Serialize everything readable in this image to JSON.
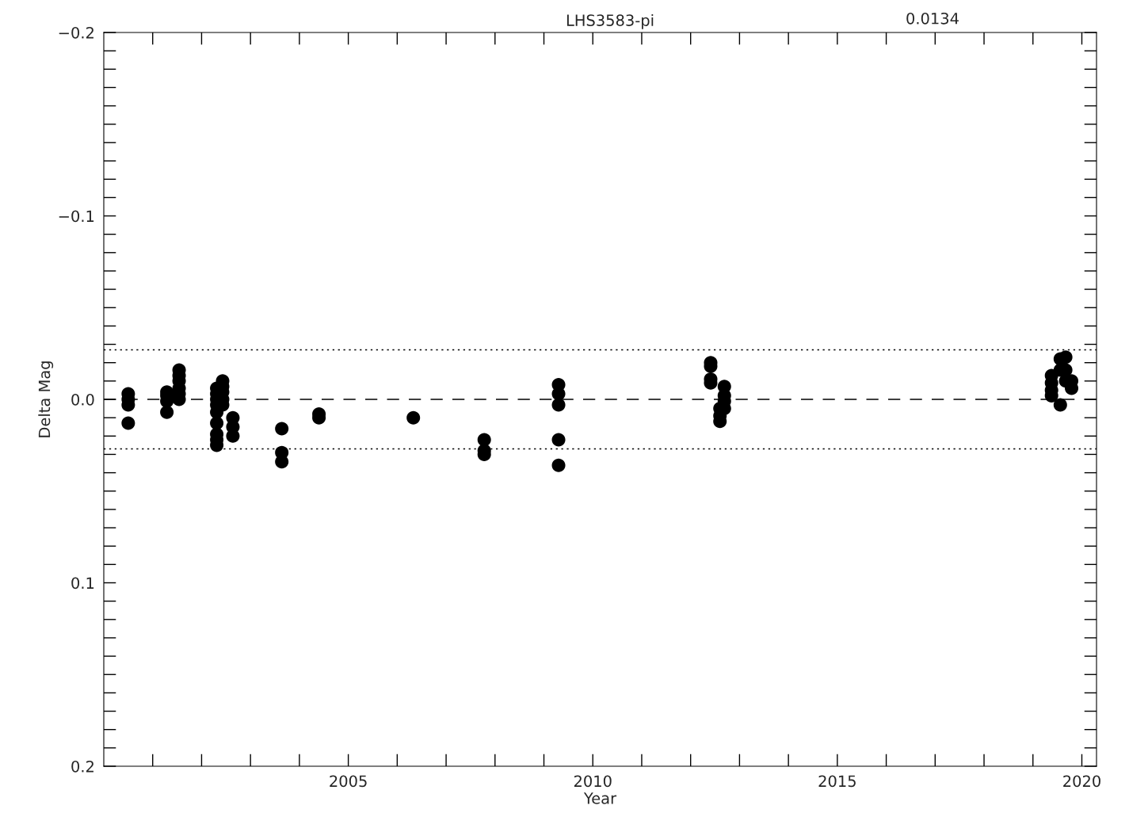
{
  "chart_data": {
    "type": "scatter",
    "title": "LHS3583-pi",
    "xlabel": "Year",
    "ylabel": "Delta Mag",
    "annotations": [
      "0.0134"
    ],
    "series": [
      {
        "color": "#000000",
        "x": [
          2000.5,
          2000.5,
          2000.5,
          2000.5,
          2001.29,
          2001.29,
          2001.29,
          2001.29,
          2001.54,
          2001.54,
          2001.54,
          2001.54,
          2001.54,
          2001.54,
          2002.31,
          2002.31,
          2002.31,
          2002.31,
          2002.31,
          2002.31,
          2002.31,
          2002.31,
          2002.31,
          2002.43,
          2002.43,
          2002.43,
          2002.43,
          2002.43,
          2002.64,
          2002.64,
          2002.64,
          2003.64,
          2003.64,
          2003.64,
          2004.4,
          2004.4,
          2006.33,
          2007.78,
          2007.78,
          2007.78,
          2009.3,
          2009.3,
          2009.3,
          2009.3,
          2009.3,
          2012.41,
          2012.41,
          2012.41,
          2012.41,
          2012.69,
          2012.69,
          2012.69,
          2012.69,
          2012.6,
          2012.6,
          2012.6,
          2019.38,
          2019.38,
          2019.38,
          2019.38,
          2019.56,
          2019.56,
          2019.56,
          2019.67,
          2019.67,
          2019.67,
          2019.79,
          2019.79
        ],
        "values": [
          -0.003,
          0.0,
          0.003,
          0.013,
          -0.004,
          -0.002,
          0.001,
          0.007,
          -0.016,
          -0.013,
          -0.01,
          -0.006,
          -0.003,
          0.0,
          -0.006,
          -0.003,
          0.0,
          0.003,
          0.007,
          0.013,
          0.019,
          0.022,
          0.025,
          -0.01,
          -0.007,
          -0.004,
          0.0,
          0.003,
          0.01,
          0.015,
          0.02,
          0.016,
          0.029,
          0.034,
          0.008,
          0.01,
          0.01,
          0.022,
          0.028,
          0.03,
          -0.008,
          -0.003,
          0.003,
          0.022,
          0.036,
          -0.02,
          -0.018,
          -0.011,
          -0.009,
          -0.007,
          -0.002,
          0.001,
          0.005,
          0.005,
          0.009,
          0.012,
          -0.013,
          -0.009,
          -0.005,
          -0.002,
          -0.022,
          -0.016,
          0.003,
          -0.023,
          -0.016,
          -0.01,
          -0.01,
          -0.006
        ]
      }
    ],
    "marker": "circle",
    "xlim": [
      2000,
      2020.3
    ],
    "xticks": [
      {
        "value": 2001,
        "label": null
      },
      {
        "value": 2002,
        "label": null
      },
      {
        "value": 2003,
        "label": null
      },
      {
        "value": 2004,
        "label": null
      },
      2005,
      {
        "value": 2006,
        "label": null
      },
      {
        "value": 2007,
        "label": null
      },
      {
        "value": 2008,
        "label": null
      },
      {
        "value": 2009,
        "label": null
      },
      2010,
      {
        "value": 2011,
        "label": null
      },
      {
        "value": 2012,
        "label": null
      },
      {
        "value": 2013,
        "label": null
      },
      {
        "value": 2014,
        "label": null
      },
      2015,
      {
        "value": 2016,
        "label": null
      },
      {
        "value": 2017,
        "label": null
      },
      {
        "value": 2018,
        "label": null
      },
      {
        "value": 2019,
        "label": null
      },
      2020
    ],
    "ylim": [
      0.2,
      -0.2
    ],
    "yticks": [
      {
        "value": -0.2,
        "label": "−0.2"
      },
      {
        "value": -0.19,
        "label": null
      },
      {
        "value": -0.18,
        "label": null
      },
      {
        "value": -0.17,
        "label": null
      },
      {
        "value": -0.16,
        "label": null
      },
      {
        "value": -0.15,
        "label": null
      },
      {
        "value": -0.14,
        "label": null
      },
      {
        "value": -0.13,
        "label": null
      },
      {
        "value": -0.12,
        "label": null
      },
      {
        "value": -0.11,
        "label": null
      },
      {
        "value": -0.1,
        "label": "−0.1"
      },
      {
        "value": -0.09,
        "label": null
      },
      {
        "value": -0.08,
        "label": null
      },
      {
        "value": -0.07,
        "label": null
      },
      {
        "value": -0.06,
        "label": null
      },
      {
        "value": -0.05,
        "label": null
      },
      {
        "value": -0.04,
        "label": null
      },
      {
        "value": -0.03,
        "label": null
      },
      {
        "value": -0.02,
        "label": null
      },
      {
        "value": -0.01,
        "label": null
      },
      {
        "value": 0.0,
        "label": "0.0"
      },
      {
        "value": 0.01,
        "label": null
      },
      {
        "value": 0.02,
        "label": null
      },
      {
        "value": 0.03,
        "label": null
      },
      {
        "value": 0.04,
        "label": null
      },
      {
        "value": 0.05,
        "label": null
      },
      {
        "value": 0.06,
        "label": null
      },
      {
        "value": 0.07,
        "label": null
      },
      {
        "value": 0.08,
        "label": null
      },
      {
        "value": 0.09,
        "label": null
      },
      {
        "value": 0.1,
        "label": "0.1"
      },
      {
        "value": 0.11,
        "label": null
      },
      {
        "value": 0.12,
        "label": null
      },
      {
        "value": 0.13,
        "label": null
      },
      {
        "value": 0.14,
        "label": null
      },
      {
        "value": 0.15,
        "label": null
      },
      {
        "value": 0.16,
        "label": null
      },
      {
        "value": 0.17,
        "label": null
      },
      {
        "value": 0.18,
        "label": null
      },
      {
        "value": 0.19,
        "label": null
      },
      {
        "value": 0.2,
        "label": "0.2"
      }
    ],
    "ref_lines": [
      {
        "axis": "y",
        "value": 0.0,
        "line_style": "dashed",
        "color": "#000000"
      },
      {
        "axis": "y",
        "value": -0.027,
        "line_style": "dotted",
        "color": "#000000"
      },
      {
        "axis": "y",
        "value": 0.027,
        "line_style": "dotted",
        "color": "#000000"
      }
    ],
    "grid": false,
    "legend": false
  }
}
